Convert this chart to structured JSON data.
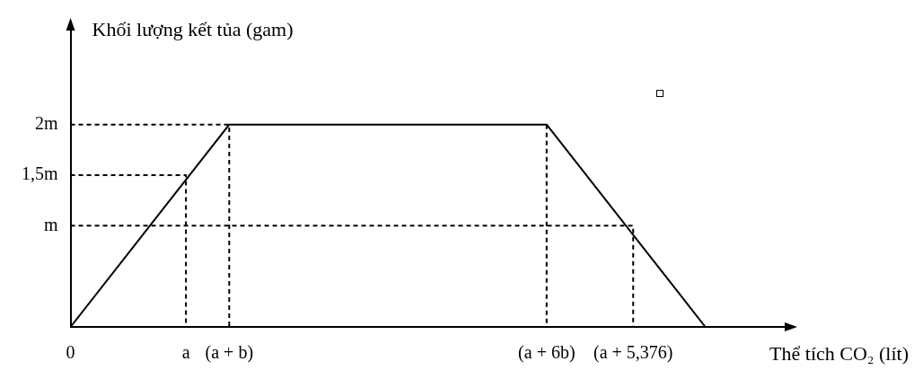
{
  "chart_data": {
    "type": "line",
    "xlabel": "Thể tích CO₂ (lít)",
    "ylabel": "Khối lượng kết tủa (gam)",
    "categories": [
      "0",
      null,
      null,
      null,
      null,
      null,
      null,
      null,
      null,
      null,
      null,
      null,
      null,
      null,
      null,
      null,
      "a",
      null,
      null,
      null,
      null,
      null,
      "(a + b)",
      null,
      null,
      null,
      null,
      null,
      null,
      null,
      null,
      null,
      null,
      null,
      null,
      null,
      null,
      null,
      null,
      null,
      null,
      null,
      null,
      null,
      null,
      null,
      null,
      null,
      null,
      null,
      null,
      null,
      null,
      null,
      null,
      null,
      null,
      null,
      null,
      null,
      null,
      null,
      null,
      null,
      null,
      null,
      "(a + 6b)",
      null,
      null,
      null,
      null,
      null,
      null,
      null,
      null,
      null,
      null,
      null,
      "(a + 5,376)",
      null,
      null,
      null,
      null,
      null,
      null,
      null,
      null,
      null,
      null,
      null,
      null,
      null,
      null,
      null,
      null,
      null,
      null,
      null,
      null,
      null,
      null
    ],
    "ylim": [
      0,
      3
    ],
    "yticks": [
      {
        "value": 1,
        "label": "m"
      },
      {
        "value": 1.5,
        "label": "1,5m"
      },
      {
        "value": 2,
        "label": "2m"
      }
    ],
    "grid": false,
    "legend": false,
    "marker": "none",
    "series": [
      {
        "color": "#000000",
        "values": [
          0,
          null,
          null,
          null,
          null,
          null,
          null,
          null,
          null,
          null,
          null,
          null,
          null,
          null,
          null,
          null,
          null,
          null,
          null,
          null,
          null,
          null,
          2,
          null,
          null,
          null,
          null,
          null,
          null,
          null,
          null,
          null,
          null,
          null,
          null,
          null,
          null,
          null,
          null,
          null,
          null,
          null,
          null,
          null,
          null,
          null,
          null,
          null,
          null,
          null,
          null,
          null,
          null,
          null,
          null,
          null,
          null,
          null,
          null,
          null,
          null,
          null,
          null,
          null,
          null,
          null,
          2,
          null,
          null,
          null,
          null,
          null,
          null,
          null,
          null,
          null,
          null,
          null,
          null,
          null,
          null,
          null,
          null,
          null,
          null,
          null,
          null,
          null,
          0,
          null,
          null,
          null,
          null,
          null,
          null,
          null,
          null,
          null,
          null,
          null,
          null
        ],
        "line_style": "solid"
      },
      {
        "color": "#000000",
        "x": [
          "0",
          "a",
          "a"
        ],
        "values": [
          1.5,
          1.5,
          0
        ],
        "line_style": "dashed"
      },
      {
        "color": "#000000",
        "x": [
          "0",
          "(a + b)",
          "(a + b)"
        ],
        "values": [
          2,
          2,
          0
        ],
        "line_style": "dashed"
      },
      {
        "color": "#000000",
        "x": [
          "(a + 6b)",
          "(a + 6b)"
        ],
        "values": [
          2,
          0
        ],
        "line_style": "dashed"
      },
      {
        "color": "#000000",
        "x": [
          "0",
          "(a + 5,376)",
          "(a + 5,376)"
        ],
        "values": [
          1,
          1,
          0
        ],
        "line_style": "dashed"
      }
    ]
  }
}
